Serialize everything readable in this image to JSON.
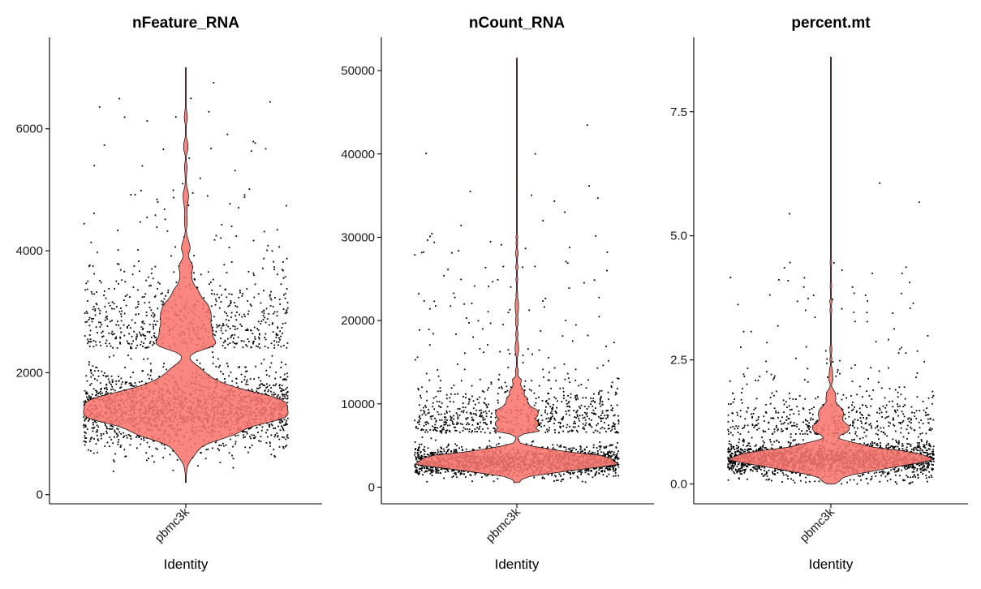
{
  "colors": {
    "violin_fill": "#f8766d",
    "violin_stroke": "#000000",
    "points": "#000000",
    "axes": "#000000"
  },
  "chart_data": [
    {
      "type": "violin",
      "title": "nFeature_RNA",
      "xlabel": "Identity",
      "ylabel": "",
      "categories": [
        "pbmc3k"
      ],
      "ylim": [
        -150,
        7500
      ],
      "yticks": [
        0,
        2000,
        4000,
        6000
      ],
      "ytick_labels": [
        "0",
        "2000",
        "4000",
        "6000"
      ],
      "y_min_value": 200,
      "y_max_value": 7000,
      "median": 1380,
      "grid": false,
      "legend": "none",
      "distribution": {
        "scale": 900,
        "body_mu": 1400,
        "body_sd": 320,
        "body_weight": 0.72,
        "tail_mu": 2400,
        "tail_sd": 650,
        "tail_weight": 0.24,
        "rare_mu": 4200,
        "rare_sd": 1200,
        "rare_weight": 0.04
      }
    },
    {
      "type": "violin",
      "title": "nCount_RNA",
      "xlabel": "Identity",
      "ylabel": "",
      "categories": [
        "pbmc3k"
      ],
      "ylim": [
        -2000,
        54000
      ],
      "yticks": [
        0,
        10000,
        20000,
        30000,
        40000,
        50000
      ],
      "ytick_labels": [
        "0",
        "10000",
        "20000",
        "30000",
        "40000",
        "50000"
      ],
      "y_min_value": 550,
      "y_max_value": 51500,
      "median": 3100,
      "grid": false,
      "legend": "none",
      "distribution": {
        "scale": 6000,
        "body_mu": 3100,
        "body_sd": 900,
        "body_weight": 0.7,
        "tail_mu": 6500,
        "tail_sd": 2800,
        "tail_weight": 0.25,
        "rare_mu": 20000,
        "rare_sd": 9000,
        "rare_weight": 0.05
      }
    },
    {
      "type": "violin",
      "title": "percent.mt",
      "xlabel": "Identity",
      "ylabel": "",
      "categories": [
        "pbmc3k"
      ],
      "ylim": [
        -0.4,
        9.0
      ],
      "yticks": [
        0.0,
        2.5,
        5.0,
        7.5
      ],
      "ytick_labels": [
        "0.0",
        "2.5",
        "5.0",
        "7.5"
      ],
      "y_min_value": 0.0,
      "y_max_value": 8.6,
      "median": 0.5,
      "grid": false,
      "legend": "none",
      "distribution": {
        "scale": 0.7,
        "body_mu": 0.5,
        "body_sd": 0.18,
        "body_weight": 0.8,
        "tail_mu": 1.0,
        "tail_sd": 0.5,
        "tail_weight": 0.17,
        "rare_mu": 3.0,
        "rare_sd": 1.5,
        "rare_weight": 0.03
      }
    }
  ]
}
